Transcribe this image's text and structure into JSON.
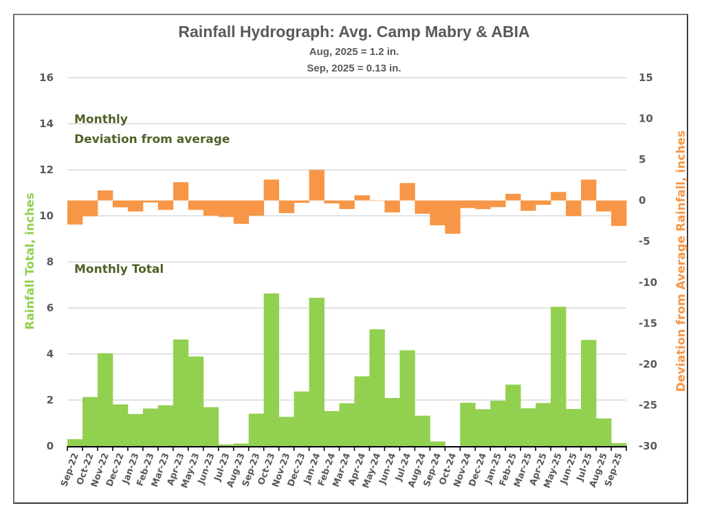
{
  "chart_data": {
    "type": "bar",
    "title": "Rainfall Hydrograph: Avg. Camp Mabry & ABIA",
    "subtitle_lines": [
      "Aug, 2025 = 1.2 in.",
      "Sep, 2025 = 0.13 in."
    ],
    "categories": [
      "Sep-22",
      "Oct-22",
      "Nov-22",
      "Dec-22",
      "Jan-23",
      "Feb-23",
      "Mar-23",
      "Apr-23",
      "May-23",
      "Jun-23",
      "Jul-23",
      "Aug-23",
      "Sep-23",
      "Oct-23",
      "Nov-23",
      "Dec-23",
      "Jan-24",
      "Feb-24",
      "Mar-24",
      "Apr-24",
      "May-24",
      "Jun-24",
      "Jul-24",
      "Aug-24",
      "Sep-24",
      "Oct-24",
      "Nov-24",
      "Dec-24",
      "Jan-25",
      "Feb-25",
      "Mar-25",
      "Apr-25",
      "May-25",
      "Jun-25",
      "Jul-25",
      "Aug-25",
      "Sep-25"
    ],
    "series": [
      {
        "name": "Monthly Total",
        "axis": "left",
        "color": "#92D050",
        "values": [
          0.3,
          2.13,
          4.03,
          1.81,
          1.39,
          1.63,
          1.77,
          4.63,
          3.89,
          1.69,
          0.07,
          0.11,
          1.41,
          6.63,
          1.27,
          2.37,
          6.44,
          1.52,
          1.86,
          3.03,
          5.07,
          2.09,
          4.16,
          1.32,
          0.2,
          0.0,
          1.88,
          1.6,
          1.97,
          2.67,
          1.64,
          1.87,
          6.05,
          1.61,
          4.61,
          1.2,
          0.13
        ]
      },
      {
        "name": "Monthly Deviation from average",
        "axis": "right",
        "color": "#F79646",
        "values": [
          -2.94,
          -1.93,
          1.23,
          -0.84,
          -1.34,
          -0.25,
          -1.15,
          2.24,
          -1.15,
          -1.85,
          -2.02,
          -2.86,
          -1.85,
          2.55,
          -1.54,
          -0.28,
          3.73,
          -0.36,
          -1.04,
          0.64,
          -0.05,
          -1.46,
          2.13,
          -1.62,
          -3.03,
          -4.06,
          -0.92,
          -1.06,
          -0.81,
          0.81,
          -1.26,
          -0.53,
          1.04,
          -1.9,
          2.55,
          -1.34,
          -3.11
        ]
      }
    ],
    "ylabel": "Rainfall Total, inches",
    "ylabel_color": "#92D050",
    "y2label": "Deviation from Average Rainfall, inches",
    "y2label_color": "#F79646",
    "ylim": [
      0,
      16
    ],
    "yticks": [
      0,
      2,
      4,
      6,
      8,
      10,
      12,
      14,
      16
    ],
    "y2lim": [
      -30,
      15
    ],
    "y2ticks": [
      -30,
      -25,
      -20,
      -15,
      -10,
      -5,
      0,
      5,
      10,
      15
    ],
    "grid": true,
    "legend_labels": {
      "deviation_line1": "Monthly",
      "deviation_line2": "Deviation from average",
      "total": "Monthly Total"
    },
    "legend_placement": "inside-left"
  }
}
